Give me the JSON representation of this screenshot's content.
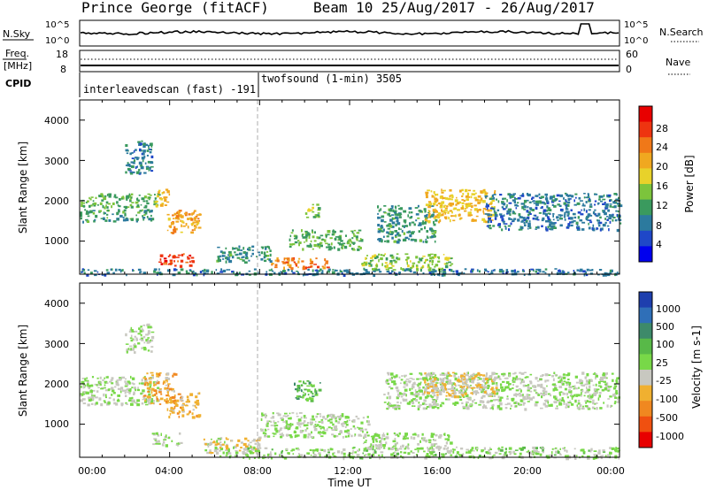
{
  "header": {
    "site": "Prince George (fitACF)",
    "beam_dates": "Beam 10 25/Aug/2017 - 26/Aug/2017"
  },
  "top_panels": {
    "nsky_label": "N.Sky",
    "nsky_ticks": [
      "10^5",
      "10^0"
    ],
    "nsearch_label": "N.Search",
    "nsearch_ticks": [
      "10^5",
      "10^0"
    ],
    "freq_label": "Freq.",
    "freq_unit": "[MHz]",
    "freq_ticks": [
      "18",
      "8"
    ],
    "nave_label": "Nave",
    "nave_ticks": [
      "60",
      "0"
    ],
    "cpid_label": "CPID",
    "cpid_segments": [
      {
        "start_hour": 0,
        "text": "interleavedscan (fast) -191"
      },
      {
        "start_hour": 8,
        "text": "twofsound (1-min) 3505"
      }
    ]
  },
  "axes": {
    "ylabel": "Slant Range [km]",
    "xlabel": "Time UT",
    "yticks": [
      "4000",
      "3000",
      "2000",
      "1000"
    ],
    "xticks": [
      "00:00",
      "04:00",
      "08:00",
      "12:00",
      "16:00",
      "20:00",
      "00:00"
    ]
  },
  "colorbars": {
    "power": {
      "label": "Power [dB]",
      "ticks": [
        "28",
        "24",
        "20",
        "16",
        "12",
        "8",
        "4"
      ],
      "colors": [
        "#0000ee",
        "#1f47c8",
        "#2c7a9e",
        "#3a9a5e",
        "#7cc43c",
        "#e8d22a",
        "#f0a820",
        "#f07818",
        "#ee3410",
        "#e80000"
      ]
    },
    "velocity": {
      "label": "Velocity [m s-1]",
      "ticks": [
        "1000",
        "500",
        "100",
        "25",
        "-25",
        "-100",
        "-500",
        "-1000"
      ],
      "colors": [
        "#1e3fae",
        "#2f6fb8",
        "#3d8a6a",
        "#58b948",
        "#78d848",
        "#c8c8c0",
        "#f0b030",
        "#f08820",
        "#f05010",
        "#e80000"
      ]
    }
  },
  "chart_data": [
    {
      "type": "heatmap",
      "name": "Power",
      "x_unit": "hours UT",
      "y_unit": "slant range km",
      "xlim": [
        0,
        24
      ],
      "ylim": [
        180,
        4500
      ],
      "value_unit": "dB",
      "regions": [
        {
          "t0": 0.0,
          "t1": 24.0,
          "r0": 180,
          "r1": 330,
          "value": 10
        },
        {
          "t0": 0.0,
          "t1": 3.5,
          "r0": 1850,
          "r1": 2200,
          "value": 14
        },
        {
          "t0": 0.0,
          "t1": 3.2,
          "r0": 1500,
          "r1": 1800,
          "value": 12
        },
        {
          "t0": 2.0,
          "t1": 3.2,
          "r0": 2700,
          "r1": 3500,
          "value": 10
        },
        {
          "t0": 3.3,
          "t1": 4.0,
          "r0": 1900,
          "r1": 2300,
          "value": 20
        },
        {
          "t0": 3.8,
          "t1": 5.3,
          "r0": 1200,
          "r1": 1800,
          "value": 22
        },
        {
          "t0": 3.5,
          "t1": 5.0,
          "r0": 400,
          "r1": 700,
          "value": 26
        },
        {
          "t0": 6.0,
          "t1": 8.5,
          "r0": 500,
          "r1": 900,
          "value": 12
        },
        {
          "t0": 8.5,
          "t1": 11.0,
          "r0": 350,
          "r1": 600,
          "value": 24
        },
        {
          "t0": 9.3,
          "t1": 12.5,
          "r0": 800,
          "r1": 1300,
          "value": 14
        },
        {
          "t0": 10.0,
          "t1": 10.6,
          "r0": 1600,
          "r1": 2000,
          "value": 16
        },
        {
          "t0": 12.5,
          "t1": 16.5,
          "r0": 300,
          "r1": 700,
          "value": 16
        },
        {
          "t0": 13.2,
          "t1": 15.8,
          "r0": 1000,
          "r1": 1900,
          "value": 12
        },
        {
          "t0": 15.3,
          "t1": 18.5,
          "r0": 1500,
          "r1": 2300,
          "value": 20
        },
        {
          "t0": 18.0,
          "t1": 24.0,
          "r0": 1300,
          "r1": 2200,
          "value": 10
        }
      ]
    },
    {
      "type": "heatmap",
      "name": "Velocity",
      "x_unit": "hours UT",
      "y_unit": "slant range km",
      "xlim": [
        0,
        24
      ],
      "ylim": [
        180,
        4500
      ],
      "value_unit": "m s-1",
      "regions": [
        {
          "t0": 0.0,
          "t1": 3.5,
          "r0": 1500,
          "r1": 2200,
          "value": 0
        },
        {
          "t0": 2.0,
          "t1": 3.2,
          "r0": 2800,
          "r1": 3500,
          "value": 0
        },
        {
          "t0": 2.8,
          "t1": 4.3,
          "r0": 1500,
          "r1": 2300,
          "value": -300
        },
        {
          "t0": 3.8,
          "t1": 5.3,
          "r0": 1200,
          "r1": 1800,
          "value": -300
        },
        {
          "t0": 3.2,
          "t1": 4.5,
          "r0": 500,
          "r1": 800,
          "value": 0
        },
        {
          "t0": 5.5,
          "t1": 8.0,
          "r0": 300,
          "r1": 700,
          "value": -150
        },
        {
          "t0": 6.0,
          "t1": 24.0,
          "r0": 180,
          "r1": 450,
          "value": 60
        },
        {
          "t0": 8.0,
          "t1": 12.8,
          "r0": 700,
          "r1": 1300,
          "value": 0
        },
        {
          "t0": 9.5,
          "t1": 10.7,
          "r0": 1600,
          "r1": 2100,
          "value": 300
        },
        {
          "t0": 12.5,
          "t1": 16.5,
          "r0": 400,
          "r1": 800,
          "value": 0
        },
        {
          "t0": 13.5,
          "t1": 24.0,
          "r0": 1400,
          "r1": 2300,
          "value": 0
        },
        {
          "t0": 15.3,
          "t1": 18.5,
          "r0": 1700,
          "r1": 2300,
          "value": -200
        }
      ]
    }
  ]
}
